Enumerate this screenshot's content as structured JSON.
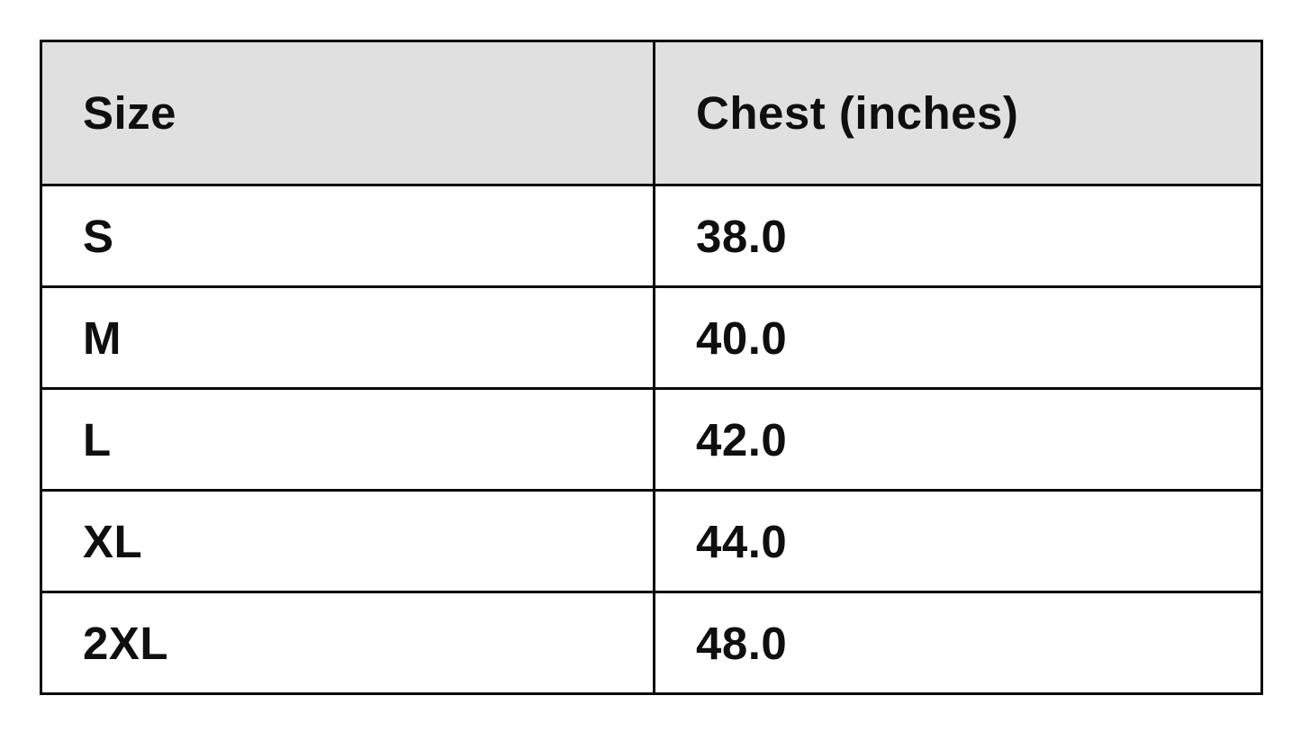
{
  "chart_data": {
    "type": "table",
    "title": "",
    "columns": [
      "Size",
      "Chest (inches)"
    ],
    "rows": [
      {
        "size": "S",
        "chest": "38.0"
      },
      {
        "size": "M",
        "chest": "40.0"
      },
      {
        "size": "L",
        "chest": "42.0"
      },
      {
        "size": "XL",
        "chest": "44.0"
      },
      {
        "size": "2XL",
        "chest": "48.0"
      }
    ],
    "chest_values_numeric": [
      38.0,
      40.0,
      42.0,
      44.0,
      48.0
    ]
  },
  "table": {
    "header": {
      "size_label": "Size",
      "chest_label": "Chest (inches)"
    },
    "rows": [
      {
        "size": "S",
        "chest": "38.0"
      },
      {
        "size": "M",
        "chest": "40.0"
      },
      {
        "size": "L",
        "chest": "42.0"
      },
      {
        "size": "XL",
        "chest": "44.0"
      },
      {
        "size": "2XL",
        "chest": "48.0"
      }
    ]
  },
  "colors": {
    "header_background": "#e0e0e0",
    "row_background": "#ffffff",
    "border": "#0a0a0a",
    "text": "#0f0f0f"
  }
}
